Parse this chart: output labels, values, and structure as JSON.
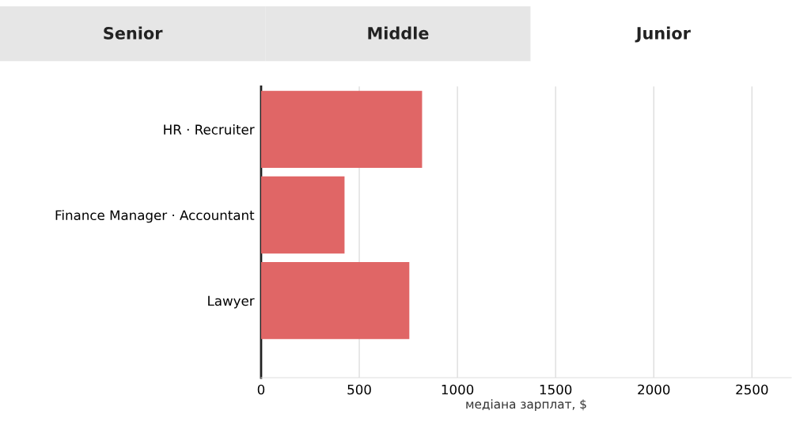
{
  "chart_data": {
    "type": "bar",
    "orientation": "horizontal",
    "annotations": [
      "Senior",
      "Middle",
      "Junior"
    ],
    "categories": [
      "HR · Recruiter",
      "Finance Manager · Accountant",
      "Lawyer"
    ],
    "values": [
      820,
      425,
      755
    ],
    "color": "#e06666",
    "xlabel": "медіана зарплат, $",
    "xlim": [
      0,
      2700
    ],
    "xticks": [
      0,
      500,
      1000,
      1500,
      2000,
      2500
    ],
    "grid": "x"
  }
}
